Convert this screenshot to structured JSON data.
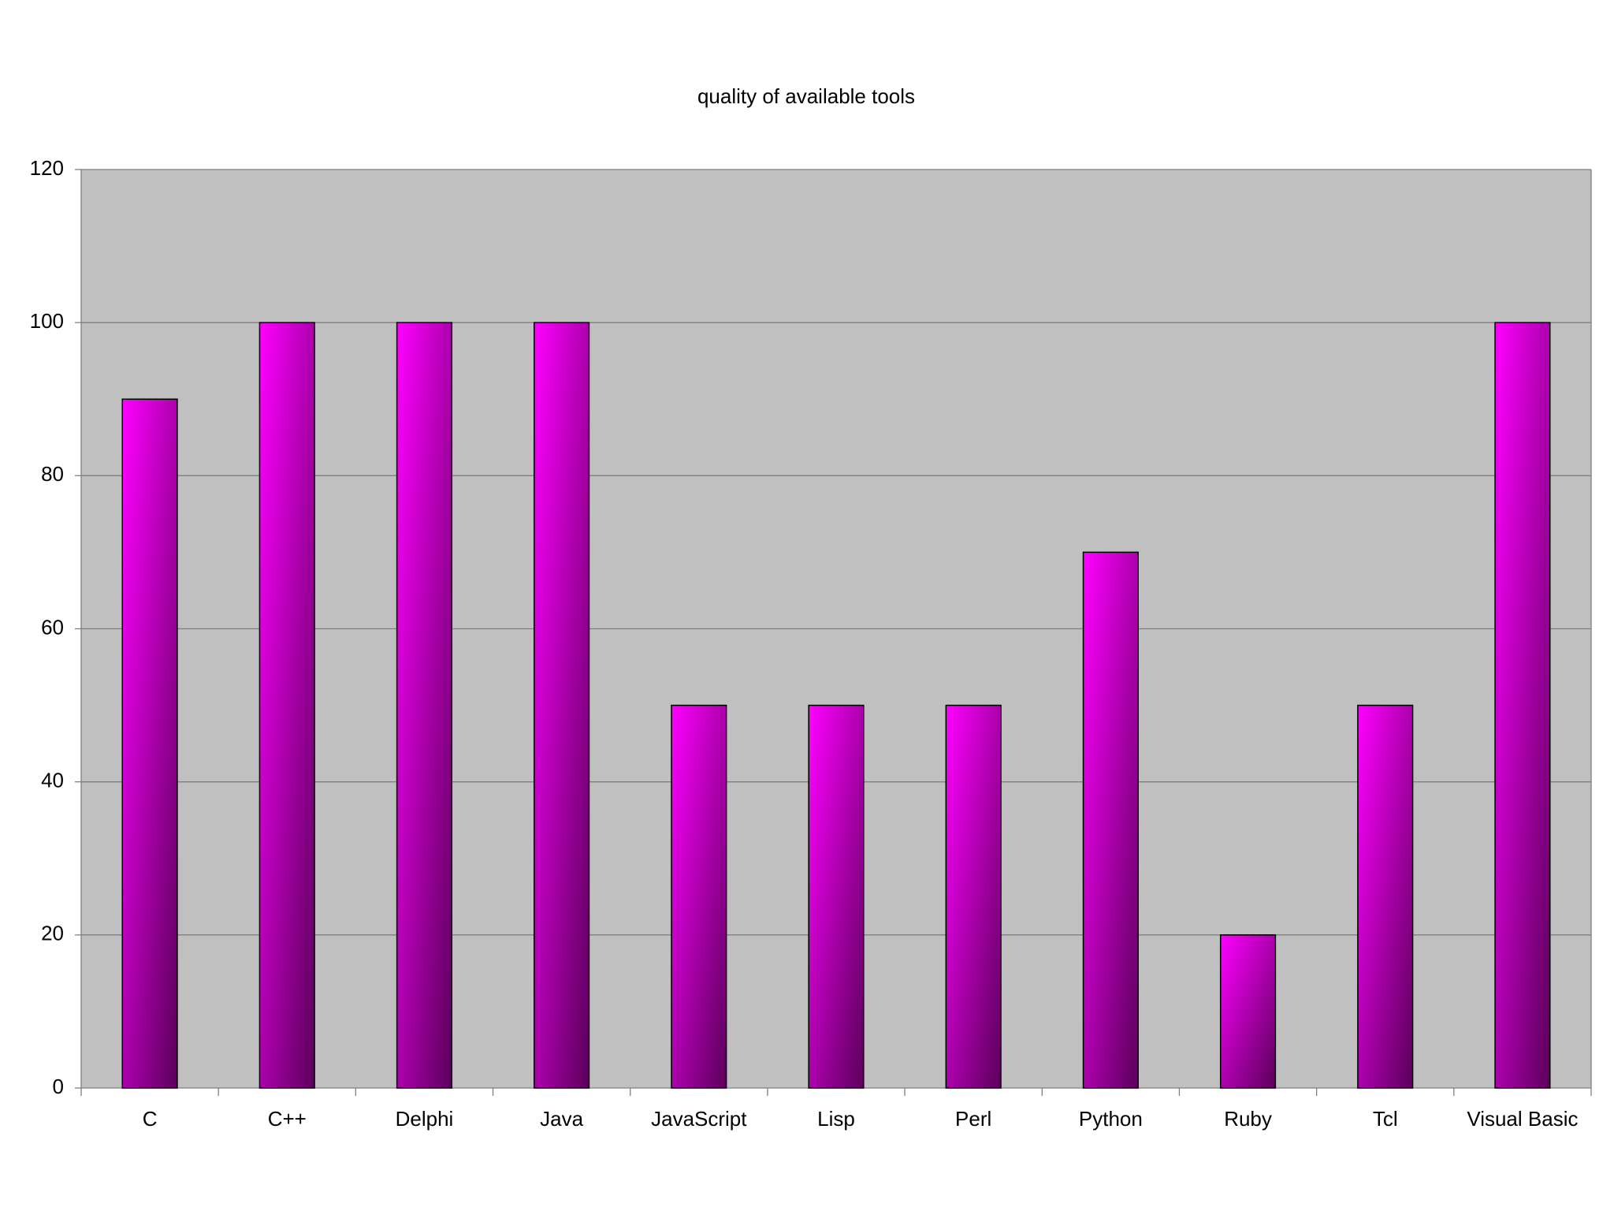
{
  "chart_data": {
    "type": "bar",
    "title": "quality of available tools",
    "categories": [
      "C",
      "C++",
      "Delphi",
      "Java",
      "JavaScript",
      "Lisp",
      "Perl",
      "Python",
      "Ruby",
      "Tcl",
      "Visual Basic"
    ],
    "values": [
      90,
      100,
      100,
      100,
      50,
      50,
      50,
      70,
      20,
      50,
      100
    ],
    "color": "#ff00ff",
    "ylim": [
      0,
      120
    ],
    "yticks": [
      0,
      20,
      40,
      60,
      80,
      100,
      120
    ],
    "grid": true
  }
}
